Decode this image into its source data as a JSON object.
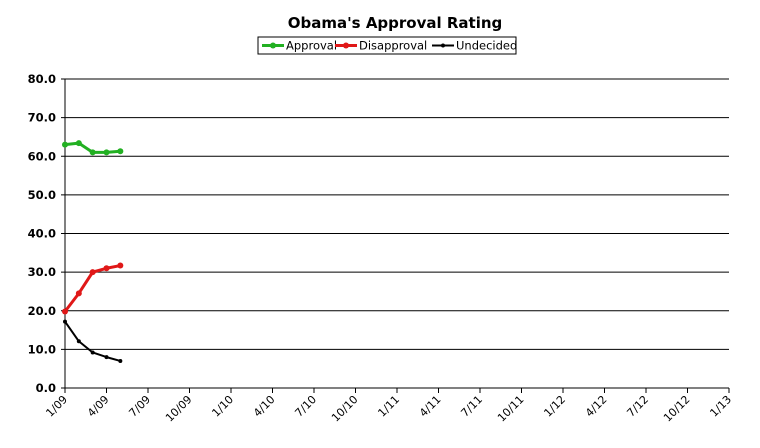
{
  "chart_data": {
    "type": "line",
    "title": "Obama's Approval Rating",
    "xlabel": "",
    "ylabel": "",
    "ylim": [
      0,
      80
    ],
    "y_ticks": [
      "0.0",
      "10.0",
      "20.0",
      "30.0",
      "40.0",
      "50.0",
      "60.0",
      "70.0",
      "80.0"
    ],
    "x_ticks": [
      "1/09",
      "4/09",
      "7/09",
      "10/09",
      "1/10",
      "4/10",
      "7/10",
      "10/10",
      "1/11",
      "4/11",
      "7/11",
      "10/11",
      "1/12",
      "4/12",
      "7/12",
      "10/12",
      "1/13"
    ],
    "grid": "horizontal",
    "legend_position": "top",
    "x": [
      "1/09",
      "2/09",
      "3/09",
      "4/09",
      "5/09"
    ],
    "series": [
      {
        "name": "Approval",
        "color": "#22b022",
        "values": [
          63.0,
          63.4,
          61.0,
          61.0,
          61.3
        ]
      },
      {
        "name": "Disapproval",
        "color": "#e01818",
        "values": [
          19.8,
          24.5,
          30.0,
          31.0,
          31.7
        ]
      },
      {
        "name": "Undecided",
        "color": "#000000",
        "values": [
          17.2,
          12.1,
          9.2,
          8.0,
          7.0
        ]
      }
    ]
  }
}
